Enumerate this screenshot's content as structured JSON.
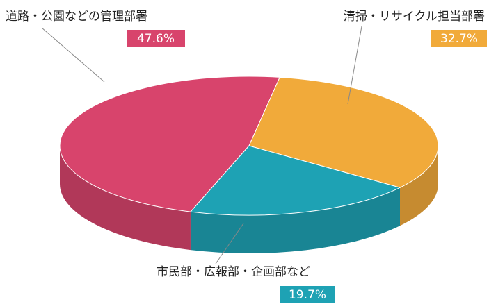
{
  "chart_data": {
    "type": "pie",
    "categories": [
      "道路・公園などの管理部署",
      "清掃・リサイクル担当部署",
      "市民部・広報部・企画部など"
    ],
    "values": [
      47.6,
      32.7,
      19.7
    ],
    "value_labels": [
      "47.6%",
      "32.7%",
      "19.7%"
    ],
    "colors": [
      "#d8446c",
      "#f1aa3a",
      "#1ea2b4"
    ]
  }
}
